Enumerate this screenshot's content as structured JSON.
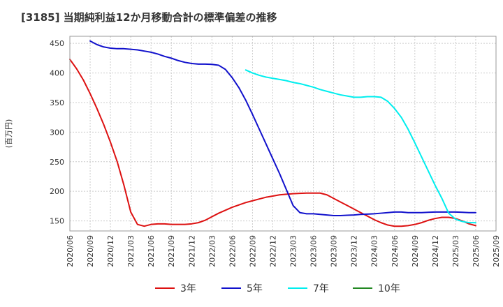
{
  "chart_data": {
    "type": "line",
    "title": "[3185]  当期純利益12か月移動合計の標準偏差の推移",
    "xlabel": "",
    "ylabel": "(百万円)",
    "ylim": [
      133,
      462
    ],
    "yticks": [
      150,
      200,
      250,
      300,
      350,
      400,
      450
    ],
    "x_start": "2020-06",
    "x_end": "2025-09",
    "xtick_labels": [
      "2020/06",
      "2020/09",
      "2020/12",
      "2021/03",
      "2021/06",
      "2021/09",
      "2021/12",
      "2022/03",
      "2022/06",
      "2022/09",
      "2022/12",
      "2023/03",
      "2023/06",
      "2023/09",
      "2023/12",
      "2024/03",
      "2024/06",
      "2024/09",
      "2024/12",
      "2025/03",
      "2025/06",
      "2025/09"
    ],
    "grid": true,
    "legend_position": "bottom",
    "series": [
      {
        "name": "3年",
        "color": "#dd1111",
        "points": [
          [
            "2020-06",
            423
          ],
          [
            "2020-07",
            407
          ],
          [
            "2020-08",
            388
          ],
          [
            "2020-09",
            365
          ],
          [
            "2020-10",
            340
          ],
          [
            "2020-11",
            313
          ],
          [
            "2020-12",
            283
          ],
          [
            "2021-01",
            250
          ],
          [
            "2021-02",
            210
          ],
          [
            "2021-03",
            165
          ],
          [
            "2021-04",
            144
          ],
          [
            "2021-05",
            141
          ],
          [
            "2021-06",
            144
          ],
          [
            "2021-07",
            145
          ],
          [
            "2021-08",
            145
          ],
          [
            "2021-09",
            144
          ],
          [
            "2021-10",
            144
          ],
          [
            "2021-11",
            144
          ],
          [
            "2021-12",
            145
          ],
          [
            "2022-01",
            147
          ],
          [
            "2022-02",
            151
          ],
          [
            "2022-03",
            157
          ],
          [
            "2022-04",
            163
          ],
          [
            "2022-05",
            168
          ],
          [
            "2022-06",
            173
          ],
          [
            "2022-07",
            177
          ],
          [
            "2022-08",
            181
          ],
          [
            "2022-09",
            184
          ],
          [
            "2022-10",
            187
          ],
          [
            "2022-11",
            190
          ],
          [
            "2022-12",
            192
          ],
          [
            "2023-01",
            194
          ],
          [
            "2023-02",
            195
          ],
          [
            "2023-03",
            196
          ],
          [
            "2023-04",
            196.5
          ],
          [
            "2023-05",
            197
          ],
          [
            "2023-06",
            197
          ],
          [
            "2023-07",
            197
          ],
          [
            "2023-08",
            194
          ],
          [
            "2023-09",
            188
          ],
          [
            "2023-10",
            182
          ],
          [
            "2023-11",
            176
          ],
          [
            "2023-12",
            170
          ],
          [
            "2024-01",
            164
          ],
          [
            "2024-02",
            158
          ],
          [
            "2024-03",
            152
          ],
          [
            "2024-04",
            147
          ],
          [
            "2024-05",
            143
          ],
          [
            "2024-06",
            141
          ],
          [
            "2024-07",
            141
          ],
          [
            "2024-08",
            142
          ],
          [
            "2024-09",
            144
          ],
          [
            "2024-10",
            147
          ],
          [
            "2024-11",
            151
          ],
          [
            "2024-12",
            154
          ],
          [
            "2025-01",
            156
          ],
          [
            "2025-02",
            156
          ],
          [
            "2025-03",
            154
          ],
          [
            "2025-04",
            150
          ],
          [
            "2025-05",
            145
          ],
          [
            "2025-06",
            142
          ]
        ]
      },
      {
        "name": "5年",
        "color": "#1111cc",
        "points": [
          [
            "2020-09",
            454
          ],
          [
            "2020-10",
            448
          ],
          [
            "2020-11",
            444
          ],
          [
            "2020-12",
            442
          ],
          [
            "2021-01",
            441
          ],
          [
            "2021-02",
            441
          ],
          [
            "2021-03",
            440
          ],
          [
            "2021-04",
            439
          ],
          [
            "2021-05",
            437
          ],
          [
            "2021-06",
            435
          ],
          [
            "2021-07",
            432
          ],
          [
            "2021-08",
            428
          ],
          [
            "2021-09",
            425
          ],
          [
            "2021-10",
            421
          ],
          [
            "2021-11",
            418
          ],
          [
            "2021-12",
            416
          ],
          [
            "2022-01",
            415
          ],
          [
            "2022-02",
            415
          ],
          [
            "2022-03",
            414.5
          ],
          [
            "2022-04",
            413
          ],
          [
            "2022-05",
            406
          ],
          [
            "2022-06",
            392
          ],
          [
            "2022-07",
            375
          ],
          [
            "2022-08",
            354
          ],
          [
            "2022-09",
            330
          ],
          [
            "2022-10",
            305
          ],
          [
            "2022-11",
            280
          ],
          [
            "2022-12",
            255
          ],
          [
            "2023-01",
            230
          ],
          [
            "2023-02",
            203
          ],
          [
            "2023-03",
            176
          ],
          [
            "2023-04",
            164
          ],
          [
            "2023-05",
            162
          ],
          [
            "2023-06",
            162
          ],
          [
            "2023-07",
            161
          ],
          [
            "2023-08",
            160
          ],
          [
            "2023-09",
            159
          ],
          [
            "2023-10",
            159
          ],
          [
            "2023-11",
            159.5
          ],
          [
            "2023-12",
            160
          ],
          [
            "2024-01",
            161
          ],
          [
            "2024-02",
            161.5
          ],
          [
            "2024-03",
            162
          ],
          [
            "2024-04",
            163
          ],
          [
            "2024-05",
            164
          ],
          [
            "2024-06",
            165
          ],
          [
            "2024-07",
            165
          ],
          [
            "2024-08",
            164
          ],
          [
            "2024-09",
            164
          ],
          [
            "2024-10",
            164
          ],
          [
            "2024-11",
            164.5
          ],
          [
            "2024-12",
            165
          ],
          [
            "2025-01",
            165
          ],
          [
            "2025-02",
            165
          ],
          [
            "2025-03",
            165
          ],
          [
            "2025-04",
            164.5
          ],
          [
            "2025-05",
            164
          ],
          [
            "2025-06",
            164
          ]
        ]
      },
      {
        "name": "7年",
        "color": "#00eeee",
        "points": [
          [
            "2022-08",
            405
          ],
          [
            "2022-09",
            400
          ],
          [
            "2022-10",
            396
          ],
          [
            "2022-11",
            393
          ],
          [
            "2022-12",
            391
          ],
          [
            "2023-01",
            389
          ],
          [
            "2023-02",
            387
          ],
          [
            "2023-03",
            384
          ],
          [
            "2023-04",
            382
          ],
          [
            "2023-05",
            379
          ],
          [
            "2023-06",
            376
          ],
          [
            "2023-07",
            372
          ],
          [
            "2023-08",
            369
          ],
          [
            "2023-09",
            366
          ],
          [
            "2023-10",
            363
          ],
          [
            "2023-11",
            361
          ],
          [
            "2023-12",
            359
          ],
          [
            "2024-01",
            359
          ],
          [
            "2024-02",
            360
          ],
          [
            "2024-03",
            360
          ],
          [
            "2024-04",
            359
          ],
          [
            "2024-05",
            352
          ],
          [
            "2024-06",
            340
          ],
          [
            "2024-07",
            325
          ],
          [
            "2024-08",
            305
          ],
          [
            "2024-09",
            282
          ],
          [
            "2024-10",
            258
          ],
          [
            "2024-11",
            234
          ],
          [
            "2024-12",
            210
          ],
          [
            "2025-01",
            188
          ],
          [
            "2025-02",
            163
          ],
          [
            "2025-03",
            153
          ],
          [
            "2025-04",
            149
          ],
          [
            "2025-05",
            147
          ],
          [
            "2025-06",
            147
          ]
        ]
      },
      {
        "name": "10年",
        "color": "#228822",
        "points": []
      }
    ]
  }
}
